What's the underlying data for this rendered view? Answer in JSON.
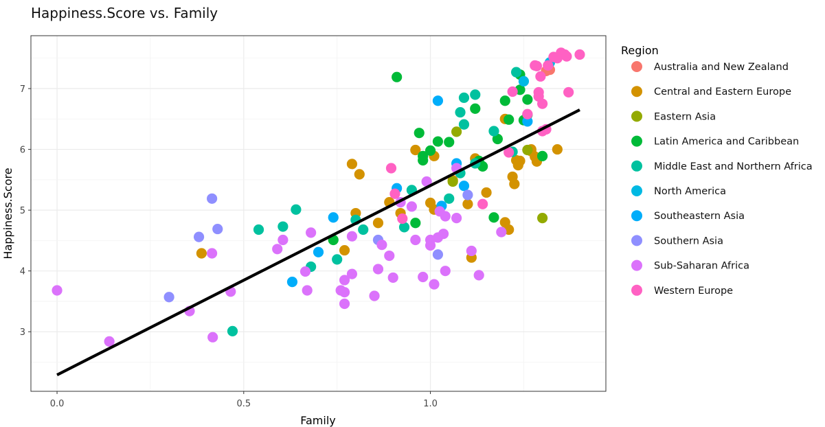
{
  "chart_data": {
    "type": "scatter",
    "title": "Happiness.Score vs. Family",
    "xlabel": "Family",
    "ylabel": "Happiness.Score",
    "xlim": [
      -0.07,
      1.47
    ],
    "ylim": [
      2.02,
      7.87
    ],
    "x_ticks": [
      0.0,
      0.5,
      1.0
    ],
    "x_tick_labels": [
      "0.0",
      "0.5",
      "1.0"
    ],
    "y_ticks": [
      3,
      4,
      5,
      6,
      7
    ],
    "y_tick_labels": [
      "3",
      "4",
      "5",
      "6",
      "7"
    ],
    "grid": true,
    "legend": {
      "title": "Region",
      "placement": "right"
    },
    "trend_line": {
      "color": "#000000",
      "x": [
        0.0,
        1.4
      ],
      "y": [
        2.29,
        6.65
      ]
    },
    "series": [
      {
        "name": "Australia and New Zealand",
        "color": "#F8766D",
        "points": [
          [
            1.31,
            7.29
          ],
          [
            1.32,
            7.31
          ]
        ]
      },
      {
        "name": "Central and Eastern Europe",
        "color": "#D39200",
        "points": [
          [
            0.387,
            4.29
          ],
          [
            0.79,
            5.76
          ],
          [
            0.81,
            5.59
          ],
          [
            0.8,
            4.95
          ],
          [
            0.77,
            4.34
          ],
          [
            0.86,
            4.79
          ],
          [
            0.89,
            5.13
          ],
          [
            0.92,
            4.95
          ],
          [
            0.96,
            5.99
          ],
          [
            1.01,
            5.89
          ],
          [
            1.0,
            5.12
          ],
          [
            1.01,
            5.01
          ],
          [
            1.06,
            5.49
          ],
          [
            1.1,
            5.1
          ],
          [
            1.12,
            5.85
          ],
          [
            1.15,
            5.29
          ],
          [
            1.11,
            4.22
          ],
          [
            1.2,
            4.8
          ],
          [
            1.21,
            4.68
          ],
          [
            1.22,
            5.55
          ],
          [
            1.225,
            5.43
          ],
          [
            1.23,
            5.82
          ],
          [
            1.235,
            5.74
          ],
          [
            1.27,
            6.0
          ],
          [
            1.28,
            5.88
          ],
          [
            1.285,
            5.8
          ],
          [
            1.34,
            6.0
          ],
          [
            1.24,
            5.81
          ],
          [
            1.27,
            5.97
          ],
          [
            1.2,
            6.5
          ]
        ]
      },
      {
        "name": "Eastern Asia",
        "color": "#93AA00",
        "points": [
          [
            1.07,
            6.29
          ],
          [
            1.06,
            5.47
          ],
          [
            1.26,
            5.99
          ],
          [
            1.3,
            4.87
          ]
        ]
      },
      {
        "name": "Latin America and Caribbean",
        "color": "#00BA38",
        "points": [
          [
            0.91,
            7.19
          ],
          [
            0.74,
            4.51
          ],
          [
            0.97,
            6.27
          ],
          [
            0.98,
            5.89
          ],
          [
            0.98,
            5.82
          ],
          [
            1.0,
            5.98
          ],
          [
            1.02,
            6.13
          ],
          [
            1.05,
            6.12
          ],
          [
            1.12,
            6.67
          ],
          [
            0.96,
            4.79
          ],
          [
            1.14,
            5.72
          ],
          [
            1.17,
            4.88
          ],
          [
            1.18,
            6.17
          ],
          [
            1.2,
            6.8
          ],
          [
            1.21,
            6.49
          ],
          [
            1.24,
            7.23
          ],
          [
            1.24,
            6.98
          ],
          [
            1.25,
            6.48
          ],
          [
            1.26,
            6.82
          ],
          [
            1.26,
            6.57
          ],
          [
            1.3,
            5.89
          ],
          [
            1.13,
            5.81
          ]
        ]
      },
      {
        "name": "Middle East and Northern Africa",
        "color": "#00C19F",
        "points": [
          [
            0.54,
            4.68
          ],
          [
            0.605,
            4.73
          ],
          [
            0.64,
            5.01
          ],
          [
            0.68,
            4.07
          ],
          [
            0.47,
            3.01
          ],
          [
            0.75,
            4.19
          ],
          [
            0.8,
            4.84
          ],
          [
            0.82,
            4.68
          ],
          [
            0.93,
            4.72
          ],
          [
            0.95,
            5.33
          ],
          [
            1.05,
            5.19
          ],
          [
            1.08,
            5.61
          ],
          [
            1.08,
            6.61
          ],
          [
            1.09,
            6.41
          ],
          [
            1.09,
            6.85
          ],
          [
            1.12,
            6.9
          ],
          [
            1.12,
            5.77
          ],
          [
            1.17,
            6.3
          ],
          [
            1.22,
            5.96
          ],
          [
            1.23,
            7.27
          ]
        ]
      },
      {
        "name": "North America",
        "color": "#00B9E3",
        "points": [
          [
            1.25,
            7.12
          ],
          [
            1.32,
            7.43
          ]
        ]
      },
      {
        "name": "Southeastern Asia",
        "color": "#00ADFA",
        "points": [
          [
            0.63,
            3.82
          ],
          [
            0.7,
            4.31
          ],
          [
            0.74,
            4.88
          ],
          [
            0.91,
            5.36
          ],
          [
            1.02,
            6.8
          ],
          [
            1.03,
            5.07
          ],
          [
            1.07,
            5.77
          ],
          [
            1.09,
            5.4
          ],
          [
            1.26,
            6.46
          ]
        ]
      },
      {
        "name": "Southern Asia",
        "color": "#8F8FFF",
        "points": [
          [
            0.3,
            3.57
          ],
          [
            0.38,
            4.56
          ],
          [
            0.415,
            5.19
          ],
          [
            0.43,
            4.69
          ],
          [
            0.86,
            4.51
          ],
          [
            1.02,
            4.27
          ],
          [
            1.1,
            5.25
          ]
        ]
      },
      {
        "name": "Sub-Saharan Africa",
        "color": "#DB72FB",
        "points": [
          [
            0.0,
            3.68
          ],
          [
            0.14,
            2.84
          ],
          [
            0.355,
            3.34
          ],
          [
            0.415,
            4.29
          ],
          [
            0.417,
            2.91
          ],
          [
            0.465,
            3.66
          ],
          [
            0.59,
            4.36
          ],
          [
            0.605,
            4.51
          ],
          [
            0.665,
            3.99
          ],
          [
            0.67,
            3.68
          ],
          [
            0.68,
            4.63
          ],
          [
            0.76,
            3.68
          ],
          [
            0.77,
            3.46
          ],
          [
            0.77,
            3.65
          ],
          [
            0.77,
            3.85
          ],
          [
            0.79,
            3.95
          ],
          [
            0.79,
            4.57
          ],
          [
            0.85,
            3.59
          ],
          [
            0.86,
            4.03
          ],
          [
            0.87,
            4.43
          ],
          [
            0.89,
            4.25
          ],
          [
            0.9,
            3.89
          ],
          [
            0.92,
            5.13
          ],
          [
            0.95,
            5.06
          ],
          [
            0.96,
            4.51
          ],
          [
            0.98,
            3.9
          ],
          [
            0.99,
            5.47
          ],
          [
            1.0,
            4.42
          ],
          [
            1.0,
            4.51
          ],
          [
            1.01,
            3.78
          ],
          [
            1.02,
            4.55
          ],
          [
            1.025,
            4.98
          ],
          [
            1.035,
            4.61
          ],
          [
            1.04,
            4.9
          ],
          [
            1.04,
            4.0
          ],
          [
            1.07,
            4.87
          ],
          [
            1.07,
            5.69
          ],
          [
            1.11,
            4.33
          ],
          [
            1.13,
            3.93
          ],
          [
            1.19,
            4.64
          ]
        ]
      },
      {
        "name": "Western Europe",
        "color": "#FF61C3",
        "points": [
          [
            0.895,
            5.69
          ],
          [
            0.905,
            5.27
          ],
          [
            0.925,
            4.86
          ],
          [
            1.14,
            5.1
          ],
          [
            1.21,
            5.95
          ],
          [
            1.22,
            6.95
          ],
          [
            1.26,
            6.58
          ],
          [
            1.28,
            7.38
          ],
          [
            1.285,
            7.37
          ],
          [
            1.29,
            6.94
          ],
          [
            1.29,
            6.87
          ],
          [
            1.295,
            7.2
          ],
          [
            1.3,
            6.75
          ],
          [
            1.3,
            6.3
          ],
          [
            1.31,
            6.33
          ],
          [
            1.315,
            7.38
          ],
          [
            1.33,
            7.52
          ],
          [
            1.34,
            7.5
          ],
          [
            1.35,
            7.59
          ],
          [
            1.36,
            7.56
          ],
          [
            1.365,
            7.53
          ],
          [
            1.37,
            6.94
          ],
          [
            1.4,
            7.56
          ]
        ]
      }
    ]
  }
}
